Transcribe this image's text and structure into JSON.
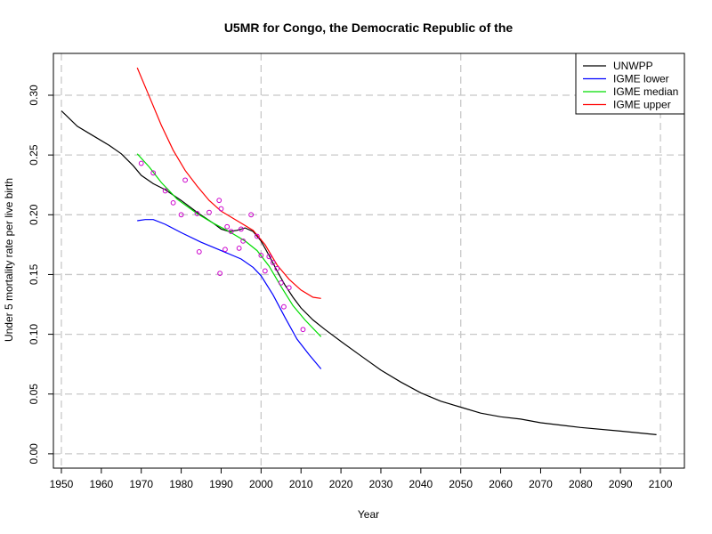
{
  "chart_data": {
    "type": "line",
    "title": "U5MR for Congo, the Democratic Republic of the",
    "xlabel": "Year",
    "ylabel": "Under 5 mortality rate per live birth",
    "xlim": [
      1948,
      2106
    ],
    "ylim": [
      -0.012,
      0.335
    ],
    "x_ticks": [
      1950,
      1960,
      1970,
      1980,
      1990,
      2000,
      2010,
      2020,
      2030,
      2040,
      2050,
      2060,
      2070,
      2080,
      2090,
      2100
    ],
    "y_ticks": [
      0.0,
      0.05,
      0.1,
      0.15,
      0.2,
      0.25,
      0.3
    ],
    "y_tick_labels": [
      "0.00",
      "0.05",
      "0.10",
      "0.15",
      "0.20",
      "0.25",
      "0.30"
    ],
    "x_grid": [
      1950,
      2000,
      2050,
      2100
    ],
    "y_grid": [
      0.0,
      0.05,
      0.1,
      0.15,
      0.2,
      0.25,
      0.3
    ],
    "legend_position": "top-right",
    "series": [
      {
        "name": "UNWPP",
        "color": "#000000",
        "kind": "line",
        "points": [
          [
            1950,
            0.287
          ],
          [
            1954,
            0.274
          ],
          [
            1958,
            0.266
          ],
          [
            1962,
            0.258
          ],
          [
            1965,
            0.251
          ],
          [
            1968,
            0.241
          ],
          [
            1970,
            0.233
          ],
          [
            1973,
            0.226
          ],
          [
            1976,
            0.221
          ],
          [
            1980,
            0.212
          ],
          [
            1984,
            0.202
          ],
          [
            1988,
            0.193
          ],
          [
            1990,
            0.188
          ],
          [
            1992,
            0.186
          ],
          [
            1994,
            0.187
          ],
          [
            1996,
            0.189
          ],
          [
            1998,
            0.186
          ],
          [
            2000,
            0.178
          ],
          [
            2002,
            0.166
          ],
          [
            2004,
            0.153
          ],
          [
            2006,
            0.141
          ],
          [
            2008,
            0.131
          ],
          [
            2010,
            0.122
          ],
          [
            2013,
            0.112
          ],
          [
            2016,
            0.104
          ],
          [
            2020,
            0.094
          ],
          [
            2025,
            0.082
          ],
          [
            2030,
            0.07
          ],
          [
            2035,
            0.06
          ],
          [
            2040,
            0.051
          ],
          [
            2045,
            0.044
          ],
          [
            2050,
            0.039
          ],
          [
            2055,
            0.034
          ],
          [
            2060,
            0.031
          ],
          [
            2065,
            0.029
          ],
          [
            2070,
            0.026
          ],
          [
            2080,
            0.022
          ],
          [
            2090,
            0.019
          ],
          [
            2099,
            0.016
          ]
        ]
      },
      {
        "name": "IGME lower",
        "color": "#0000ff",
        "kind": "line",
        "points": [
          [
            1969,
            0.195
          ],
          [
            1971,
            0.196
          ],
          [
            1973,
            0.196
          ],
          [
            1976,
            0.192
          ],
          [
            1980,
            0.185
          ],
          [
            1985,
            0.177
          ],
          [
            1990,
            0.17
          ],
          [
            1995,
            0.163
          ],
          [
            1998,
            0.156
          ],
          [
            2000,
            0.149
          ],
          [
            2003,
            0.133
          ],
          [
            2006,
            0.114
          ],
          [
            2009,
            0.096
          ],
          [
            2012,
            0.083
          ],
          [
            2015,
            0.071
          ]
        ]
      },
      {
        "name": "IGME median",
        "color": "#00dd00",
        "kind": "line",
        "points": [
          [
            1969,
            0.251
          ],
          [
            1972,
            0.24
          ],
          [
            1975,
            0.227
          ],
          [
            1979,
            0.213
          ],
          [
            1984,
            0.201
          ],
          [
            1988,
            0.193
          ],
          [
            1992,
            0.186
          ],
          [
            1996,
            0.178
          ],
          [
            1999,
            0.17
          ],
          [
            2002,
            0.157
          ],
          [
            2005,
            0.14
          ],
          [
            2008,
            0.124
          ],
          [
            2011,
            0.112
          ],
          [
            2015,
            0.098
          ]
        ]
      },
      {
        "name": "IGME upper",
        "color": "#ff0000",
        "kind": "line",
        "points": [
          [
            1969,
            0.323
          ],
          [
            1972,
            0.299
          ],
          [
            1975,
            0.275
          ],
          [
            1978,
            0.254
          ],
          [
            1981,
            0.237
          ],
          [
            1984,
            0.224
          ],
          [
            1987,
            0.212
          ],
          [
            1990,
            0.203
          ],
          [
            1994,
            0.195
          ],
          [
            1998,
            0.187
          ],
          [
            2001,
            0.175
          ],
          [
            2004,
            0.158
          ],
          [
            2007,
            0.146
          ],
          [
            2010,
            0.137
          ],
          [
            2013,
            0.131
          ],
          [
            2015,
            0.13
          ]
        ]
      },
      {
        "name": "",
        "color": "#cc00cc",
        "kind": "points",
        "points": [
          [
            1970,
            0.243
          ],
          [
            1973,
            0.235
          ],
          [
            1976,
            0.22
          ],
          [
            1978,
            0.21
          ],
          [
            1980,
            0.2
          ],
          [
            1981,
            0.229
          ],
          [
            1984,
            0.201
          ],
          [
            1984.5,
            0.169
          ],
          [
            1987,
            0.202
          ],
          [
            1989.5,
            0.212
          ],
          [
            1989.7,
            0.151
          ],
          [
            1990,
            0.205
          ],
          [
            1991,
            0.171
          ],
          [
            1991.5,
            0.19
          ],
          [
            1992.5,
            0.186
          ],
          [
            1994.5,
            0.172
          ],
          [
            1995,
            0.188
          ],
          [
            1995.5,
            0.178
          ],
          [
            1997.5,
            0.2
          ],
          [
            1999,
            0.182
          ],
          [
            2000,
            0.166
          ],
          [
            2001,
            0.153
          ],
          [
            2002,
            0.165
          ],
          [
            2003,
            0.16
          ],
          [
            2004,
            0.155
          ],
          [
            2005,
            0.143
          ],
          [
            2005.7,
            0.123
          ],
          [
            2007,
            0.139
          ],
          [
            2010.5,
            0.104
          ]
        ]
      }
    ]
  }
}
